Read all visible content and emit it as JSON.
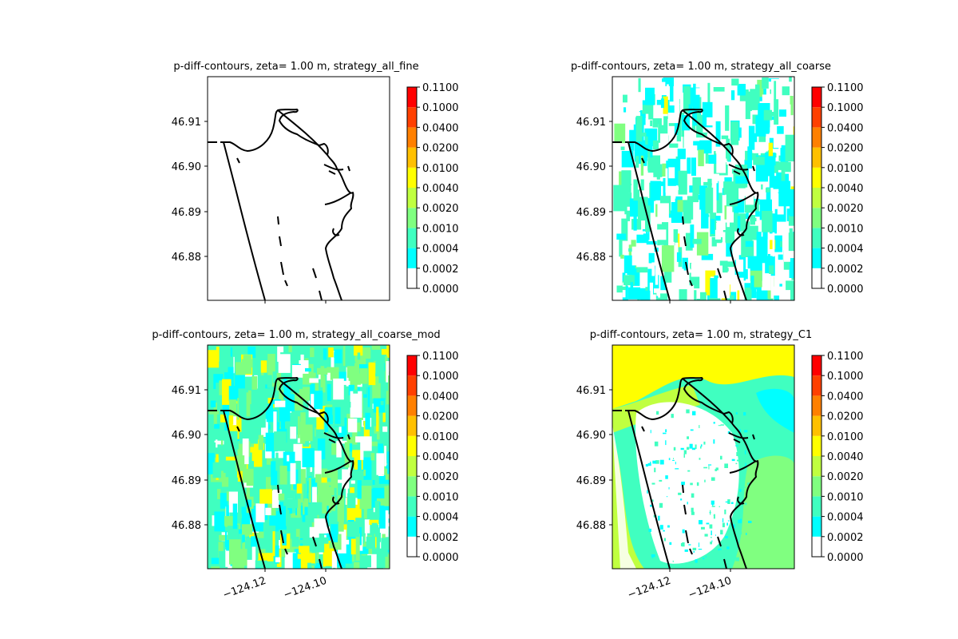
{
  "chart_data": {
    "type": "heatmap",
    "colorbar": {
      "levels": [
        "0.0000",
        "0.0002",
        "0.0004",
        "0.0010",
        "0.0020",
        "0.0040",
        "0.0100",
        "0.0200",
        "0.0400",
        "0.1000",
        "0.1100"
      ],
      "colors": [
        "#ffffff",
        "#00ffff",
        "#40ffc0",
        "#80ff80",
        "#c0ff40",
        "#ffff00",
        "#ffc000",
        "#ff8000",
        "#ff4000",
        "#ff0000"
      ]
    },
    "lon_ticks": [
      "−124.12",
      "−124.10"
    ],
    "lat_ticks": [
      "46.91",
      "46.90",
      "46.89",
      "46.88"
    ],
    "panels": [
      {
        "title": "p-diff-contours, zeta= 1.00 m, strategy_all_fine",
        "fill": "none",
        "show_lon_ticks": false
      },
      {
        "title": "p-diff-contours, zeta= 1.00 m, strategy_all_coarse",
        "fill": "coarse",
        "show_lon_ticks": false
      },
      {
        "title": "p-diff-contours, zeta= 1.00 m, strategy_all_coarse_mod",
        "fill": "coarse_mod",
        "show_lon_ticks": true
      },
      {
        "title": "p-diff-contours, zeta= 1.00 m, strategy_C1",
        "fill": "c1",
        "show_lon_ticks": true
      }
    ]
  }
}
